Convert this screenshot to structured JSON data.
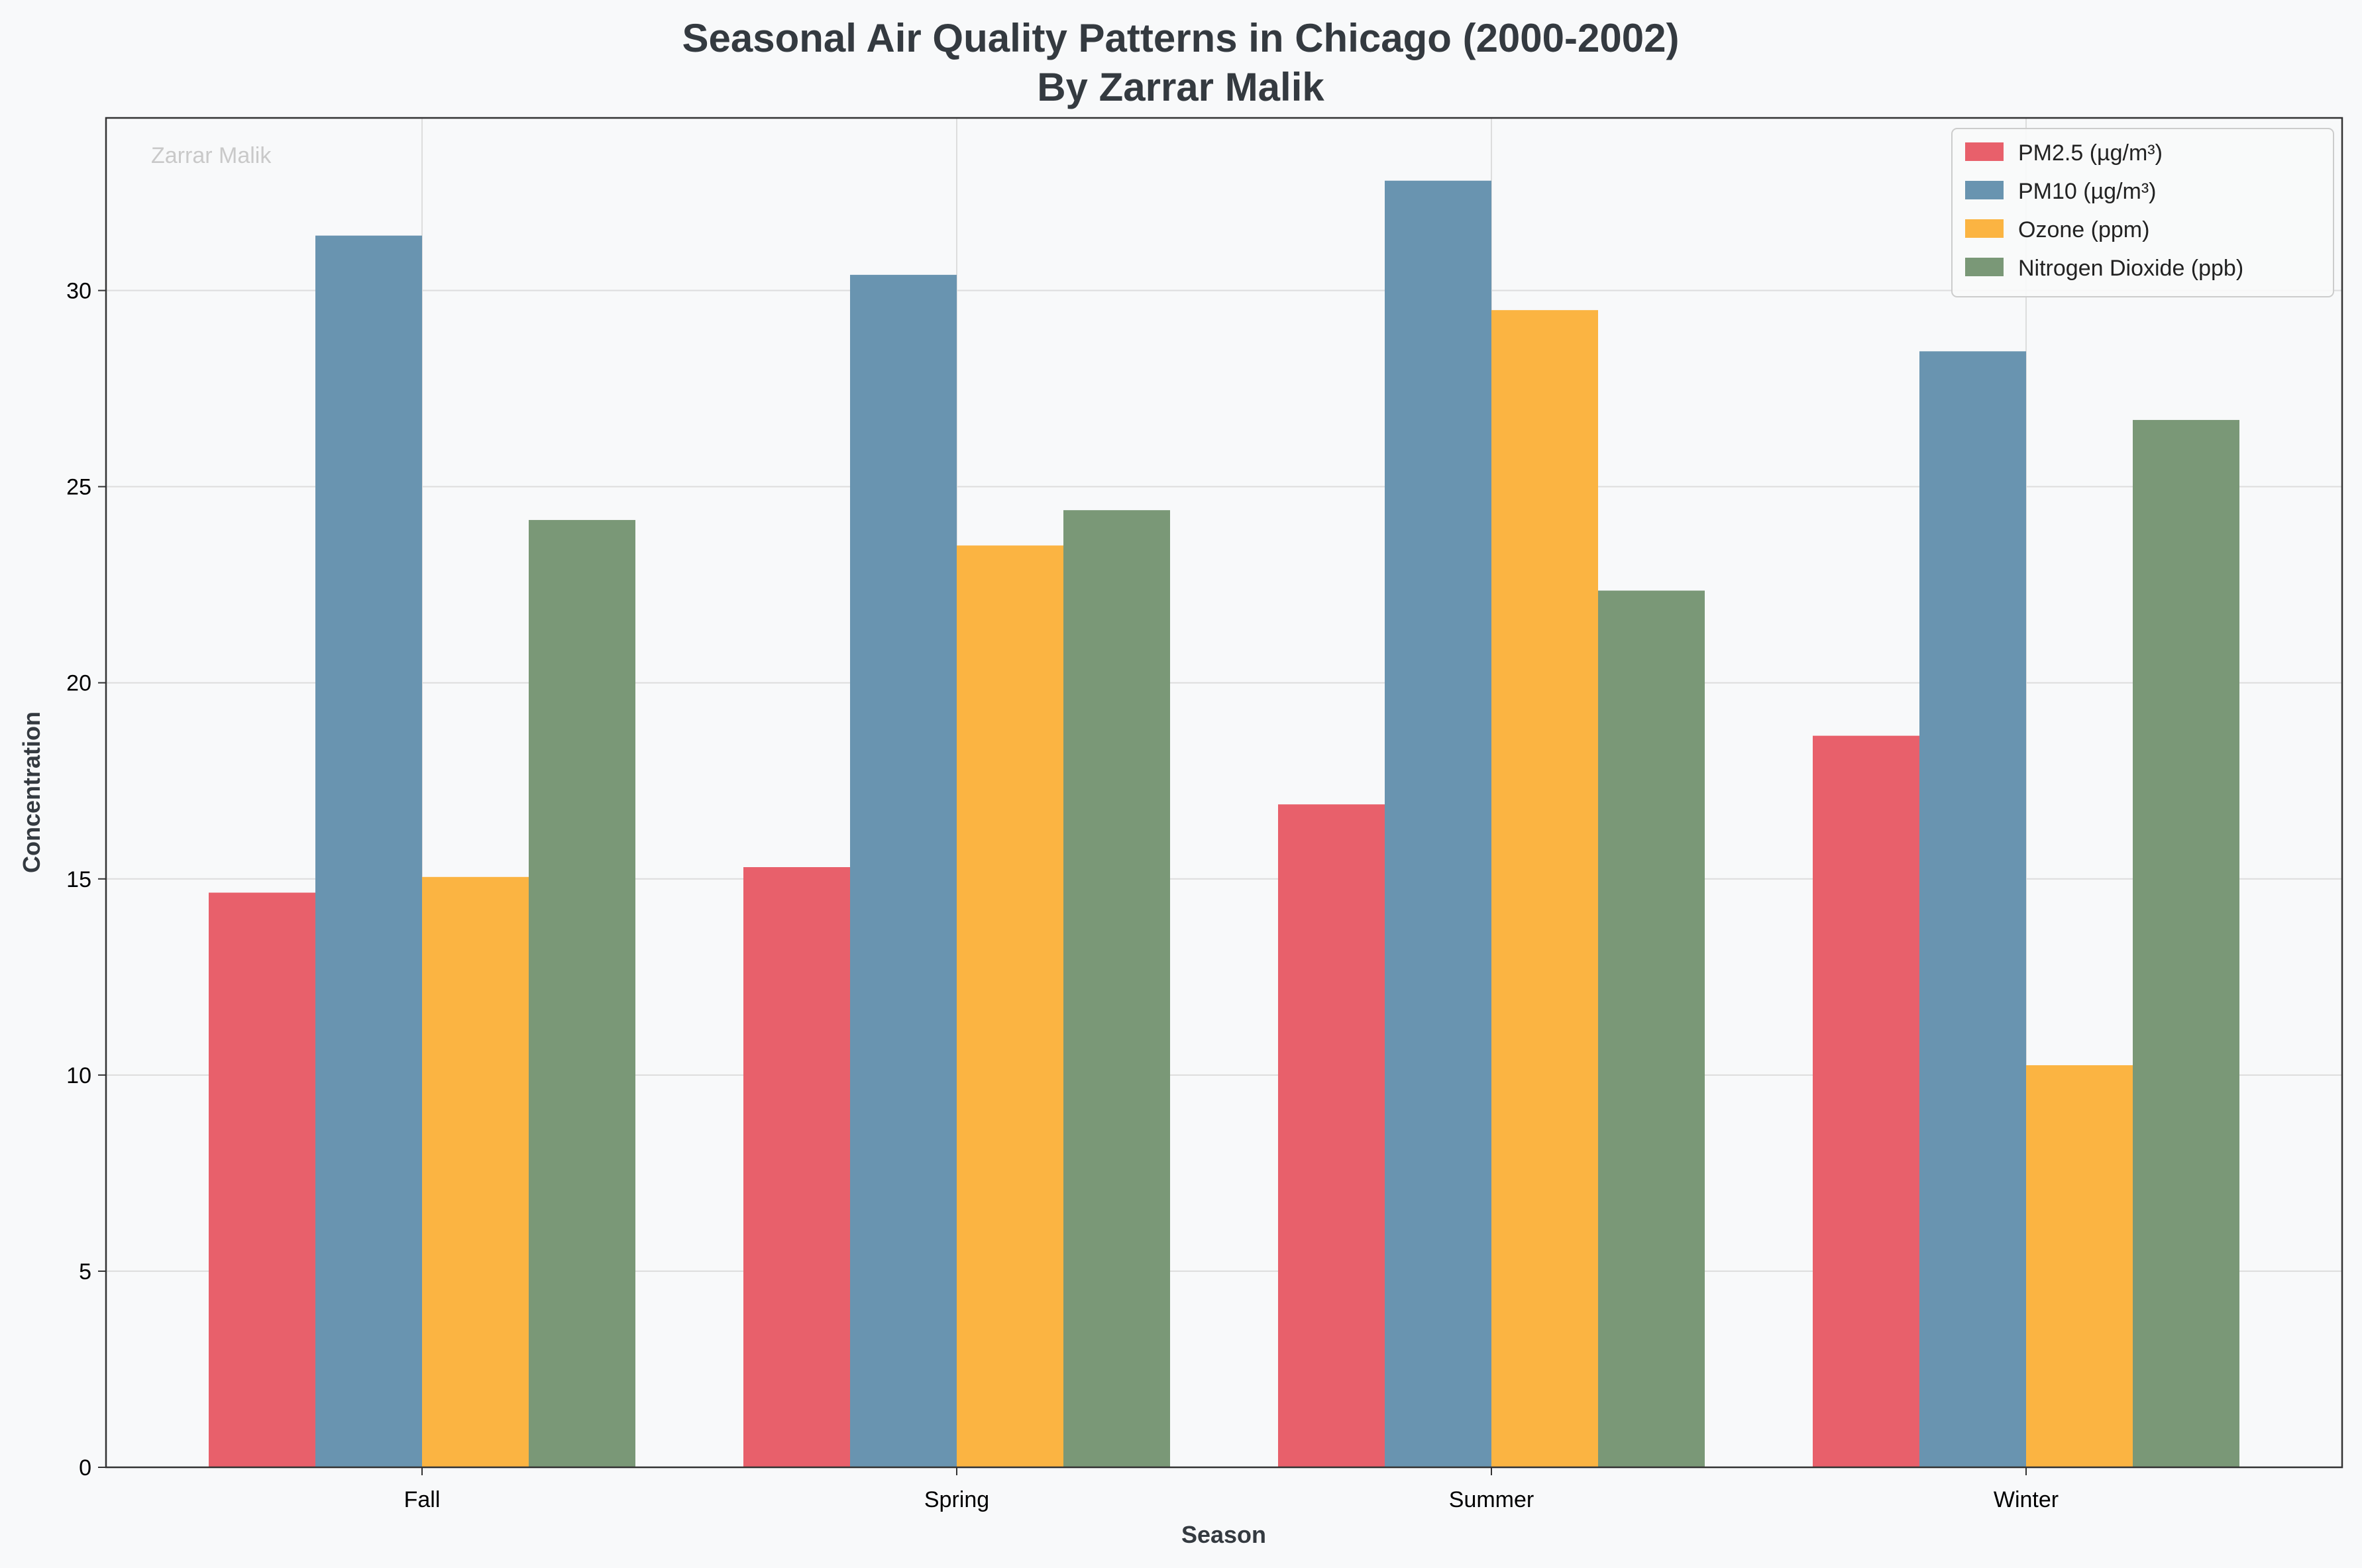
{
  "chart_data": {
    "type": "bar",
    "title": "Seasonal Air Quality Patterns in Chicago (2000-2002)",
    "subtitle": "By Zarrar Malik",
    "xlabel": "Season",
    "ylabel": "Concentration",
    "watermark": "Zarrar Malik",
    "categories": [
      "Fall",
      "Spring",
      "Summer",
      "Winter"
    ],
    "ylim": [
      0,
      34.4
    ],
    "yticks": [
      0,
      5,
      10,
      15,
      20,
      25,
      30
    ],
    "grid": true,
    "legend_position": "top-right",
    "series": [
      {
        "name": "PM2.5 (µg/m³)",
        "color": "#e8606b",
        "values": [
          14.65,
          15.3,
          16.9,
          18.65
        ]
      },
      {
        "name": "PM10 (µg/m³)",
        "color": "#6994b0",
        "values": [
          31.4,
          30.4,
          32.8,
          28.45
        ]
      },
      {
        "name": "Ozone (ppm)",
        "color": "#fbb442",
        "values": [
          15.05,
          23.5,
          29.5,
          10.25
        ]
      },
      {
        "name": "Nitrogen Dioxide (ppb)",
        "color": "#7a9877",
        "values": [
          24.15,
          24.4,
          22.35,
          26.7
        ]
      }
    ]
  }
}
